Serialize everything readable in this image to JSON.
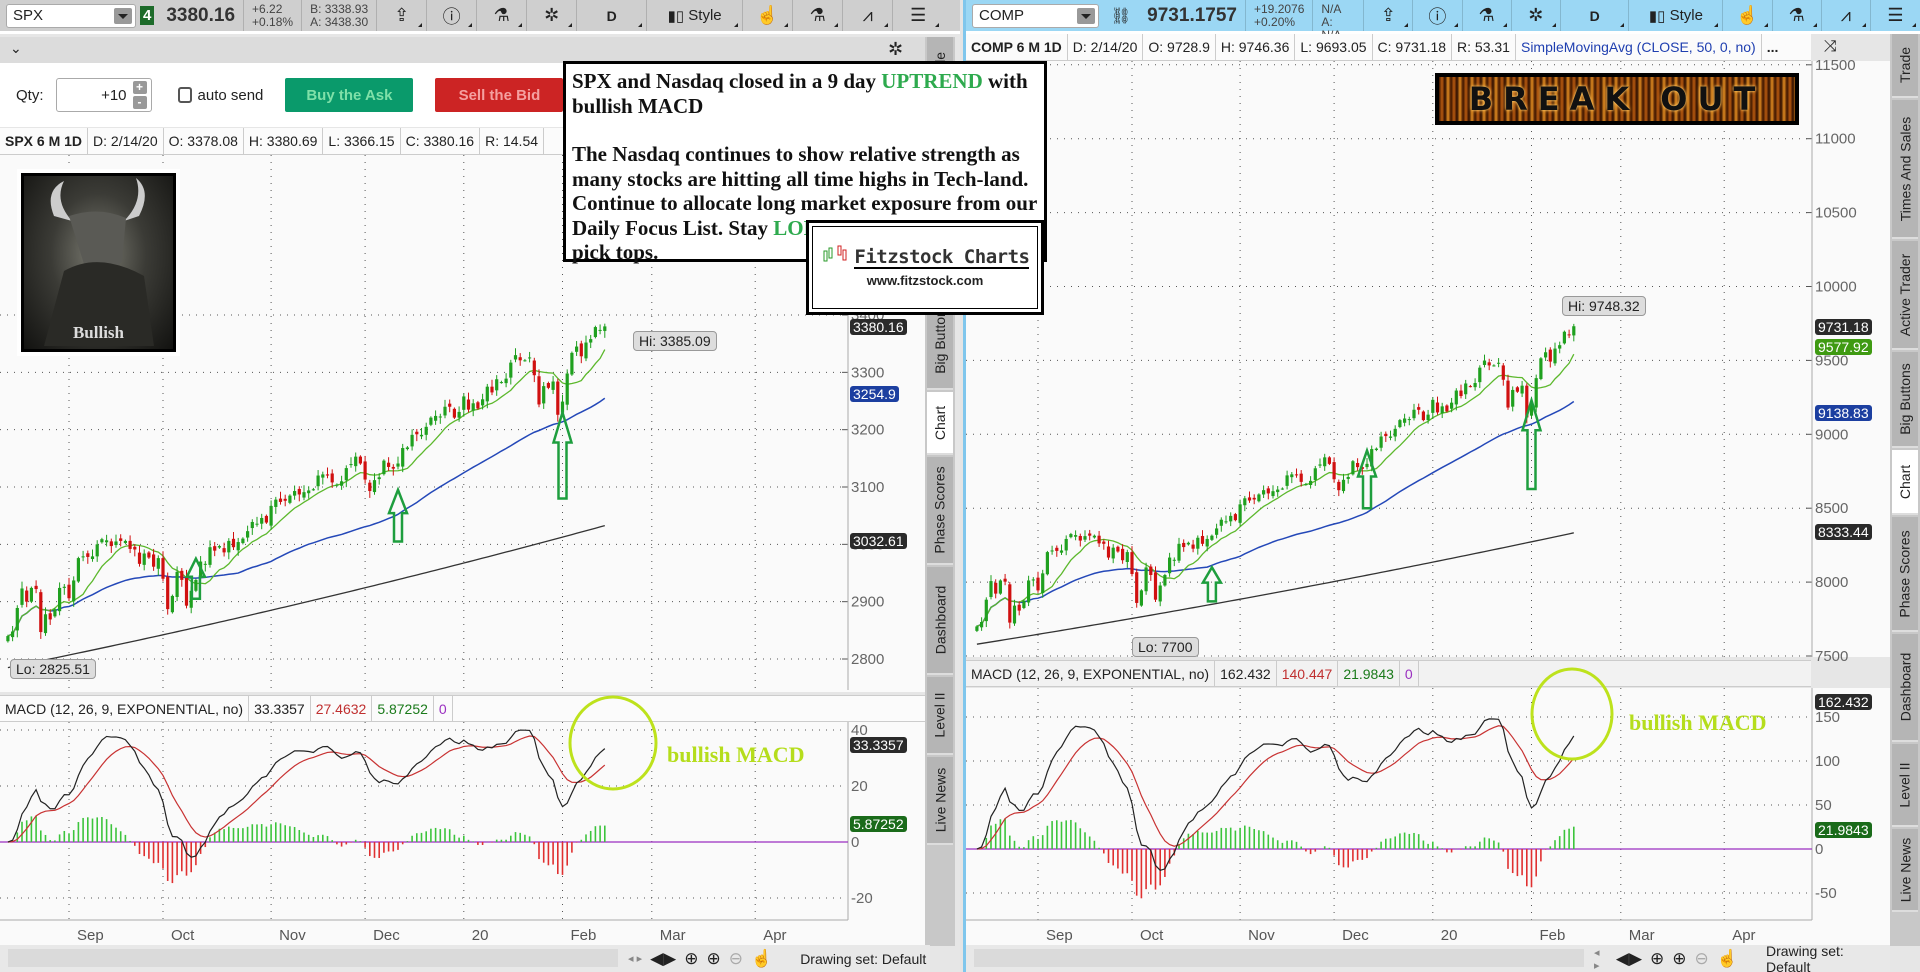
{
  "left": {
    "toolbar": {
      "symbol": "SPX",
      "link_badge": "4",
      "last": "3380.16",
      "change": "+6.22",
      "change_pct": "+0.18%",
      "bid": "B: 3338.93",
      "ask": "A: 3438.30",
      "period": "D",
      "style": "Style"
    },
    "order": {
      "qty_label": "Qty:",
      "qty_value": "+10",
      "plus": "+",
      "minus": "-",
      "auto_send": "auto send",
      "buy": "Buy the Ask",
      "sell": "Sell the Bid"
    },
    "header": [
      "SPX 6 M 1D",
      "D: 2/14/20",
      "O: 3378.08",
      "H: 3380.69",
      "L: 3366.15",
      "C: 3380.16",
      "R: 14.54"
    ],
    "macd_header": {
      "label": "MACD (12, 26, 9, EXPONENTIAL, no)",
      "value": "33.3357",
      "avg": "27.4632",
      "diff": "5.87252",
      "zero": "0"
    },
    "hi": "Hi: 3385.09",
    "lo": "Lo: 2825.51",
    "tags": {
      "last": "3380.16",
      "sma50": "3254.9",
      "sma200": "3032.61",
      "macd": "33.3357",
      "diff": "5.87252"
    },
    "bull_caption": "Bullish",
    "bullish_macd": "bullish MACD"
  },
  "right": {
    "toolbar": {
      "symbol": "COMP",
      "last": "9731.1757",
      "change": "+19.2076",
      "change_pct": "+0.20%",
      "bid": "B: N/A",
      "ask": "A: N/A",
      "period": "D",
      "style": "Style"
    },
    "header": [
      "COMP 6 M 1D",
      "D: 2/14/20",
      "O: 9728.9",
      "H: 9746.36",
      "L: 9693.05",
      "C: 9731.18",
      "R: 53.31"
    ],
    "study": "SimpleMovingAvg (CLOSE, 50, 0, no)",
    "more": "...",
    "macd_header": {
      "label": "MACD (12, 26, 9, EXPONENTIAL, no)",
      "value": "162.432",
      "avg": "140.447",
      "diff": "21.9843",
      "zero": "0"
    },
    "hi": "Hi: 9748.32",
    "lo": "Lo: 7700",
    "tags": {
      "last": "9731.18",
      "ma": "9577.92",
      "sma50": "9138.83",
      "sma200": "8333.44",
      "macd": "162.432",
      "diff": "21.9843"
    },
    "banner": "BREAK OUT",
    "bullish_macd": "bullish MACD"
  },
  "note": {
    "line1a": "SPX and Nasdaq closed in a 9 day ",
    "line1b": "UPTREND",
    "line1c": " with bullish MACD",
    "p2a": "The Nasdaq continues to show relative strength as many stocks are hitting all time highs in Tech-land.  Continue to allocate long market exposure from our Daily Focus List.  Stay ",
    "p2b": "LONG",
    "p2c": " vs stops, and dont pick tops."
  },
  "logo": {
    "title": "Fitzstock Charts",
    "url": "www.fitzstock.com"
  },
  "tabs": [
    "Trade",
    "Times And Sales",
    "Active Trader",
    "Big Buttons",
    "Chart",
    "Phase Scores",
    "Dashboard",
    "Level II",
    "Live News"
  ],
  "bottom": {
    "drawing_set": "Drawing set: Default"
  },
  "colors": {
    "up": "#1fa01f",
    "down": "#d01010",
    "ma_fast": "#5cb82c",
    "sma50": "#2448b8",
    "sma200": "#333333",
    "macd": "#222222",
    "signal": "#c83232",
    "zero": "#9a2fc0",
    "buy": "#0a9a6b",
    "sell": "#cc2424"
  },
  "chart_data": [
    {
      "type": "candlestick",
      "symbol": "SPX",
      "title": "SPX 6 M 1D",
      "x_labels": [
        {
          "label": "Sep",
          "index": 13
        },
        {
          "label": "Oct",
          "index": 33
        },
        {
          "label": "Nov",
          "index": 56
        },
        {
          "label": "Dec",
          "index": 76
        },
        {
          "label": "20",
          "index": 97
        },
        {
          "label": "Feb",
          "index": 118
        },
        {
          "label": "Mar",
          "index": 137
        },
        {
          "label": "Apr",
          "index": 159
        }
      ],
      "price_ticks": [
        2800,
        2900,
        3000,
        3100,
        3200,
        3300,
        3400
      ],
      "macd_ticks": [
        40,
        20,
        0,
        -20
      ],
      "sma200": [
        2785,
        3032.61
      ],
      "arrows": [
        {
          "index": 40,
          "from": 2905,
          "to": 2975
        },
        {
          "index": 83,
          "from": 3005,
          "to": 3095
        },
        {
          "index": 118,
          "from": 3080,
          "to": 3230
        }
      ],
      "closes": [
        2840,
        2848,
        2889,
        2923,
        2900,
        2924,
        2922,
        2847,
        2878,
        2869,
        2887,
        2924,
        2926,
        2906,
        2937,
        2976,
        2979,
        2978,
        2979,
        3000,
        3009,
        3007,
        2997,
        3005,
        3006,
        3006,
        2992,
        2991,
        2966,
        2984,
        2977,
        2961,
        2976,
        2940,
        2887,
        2910,
        2952,
        2938,
        2893,
        2919,
        2938,
        2970,
        2966,
        2995,
        2989,
        2997,
        2986,
        3006,
        2995,
        3004,
        3010,
        3023,
        3039,
        3036,
        3046,
        3038,
        3067,
        3078,
        3074,
        3076,
        3085,
        3093,
        3087,
        3091,
        3094,
        3096,
        3120,
        3122,
        3120,
        3108,
        3104,
        3110,
        3133,
        3140,
        3153,
        3141,
        3113,
        3093,
        3112,
        3117,
        3146,
        3135,
        3132,
        3141,
        3168,
        3169,
        3191,
        3192,
        3191,
        3205,
        3221,
        3224,
        3223,
        3240,
        3240,
        3221,
        3231,
        3258,
        3235,
        3246,
        3237,
        3253,
        3275,
        3265,
        3288,
        3283,
        3289,
        3317,
        3330,
        3321,
        3321,
        3326,
        3295,
        3244,
        3276,
        3273,
        3284,
        3226,
        3249,
        3298,
        3334,
        3345,
        3328,
        3352,
        3358,
        3379,
        3374,
        3380.16
      ]
    },
    {
      "type": "candlestick",
      "symbol": "COMP",
      "title": "COMP 6 M 1D",
      "x_labels": [
        {
          "label": "Sep",
          "index": 13
        },
        {
          "label": "Oct",
          "index": 33
        },
        {
          "label": "Nov",
          "index": 56
        },
        {
          "label": "Dec",
          "index": 76
        },
        {
          "label": "20",
          "index": 97
        },
        {
          "label": "Feb",
          "index": 118
        },
        {
          "label": "Mar",
          "index": 137
        },
        {
          "label": "Apr",
          "index": 159
        }
      ],
      "price_ticks": [
        7500,
        8000,
        8500,
        9000,
        9500,
        10000,
        10500,
        11000,
        11500
      ],
      "macd_ticks": [
        150,
        100,
        50,
        0,
        -50
      ],
      "sma200": [
        7580,
        8333.44
      ],
      "arrows": [
        {
          "index": 50,
          "from": 7870,
          "to": 8100
        },
        {
          "index": 83,
          "from": 8500,
          "to": 8890
        },
        {
          "index": 118,
          "from": 8630,
          "to": 9230
        }
      ],
      "closes": [
        7700,
        7730,
        7881,
        8007,
        7922,
        8011,
        8003,
        7726,
        7841,
        7807,
        7874,
        8011,
        8018,
        7944,
        8059,
        8203,
        8214,
        8211,
        8214,
        8292,
        8325,
        8318,
        8281,
        8311,
        8314,
        8314,
        8262,
        8259,
        8166,
        8233,
        8207,
        8148,
        8203,
        8055,
        7859,
        7944,
        8099,
        8048,
        7881,
        7977,
        8048,
        8166,
        8151,
        8259,
        8237,
        8266,
        8226,
        8300,
        8259,
        8292,
        8314,
        8363,
        8422,
        8411,
        8448,
        8419,
        8526,
        8567,
        8552,
        8559,
        8593,
        8622,
        8600,
        8615,
        8626,
        8633,
        8722,
        8729,
        8722,
        8678,
        8663,
        8685,
        8770,
        8796,
        8844,
        8800,
        8696,
        8622,
        8692,
        8711,
        8818,
        8778,
        8766,
        8800,
        8900,
        8903,
        8985,
        8988,
        8985,
        9037,
        9096,
        9107,
        9103,
        9166,
        9166,
        9096,
        9133,
        9233,
        9148,
        9189,
        9155,
        9214,
        9296,
        9259,
        9344,
        9325,
        9347,
        9451,
        9499,
        9466,
        9466,
        9484,
        9369,
        9181,
        9300,
        9288,
        9329,
        9114,
        9199,
        9380,
        9514,
        9555,
        9492,
        9580,
        9603,
        9694,
        9675,
        9731.18
      ]
    }
  ]
}
